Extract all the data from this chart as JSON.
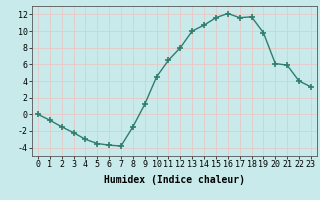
{
  "x": [
    0,
    1,
    2,
    3,
    4,
    5,
    6,
    7,
    8,
    9,
    10,
    11,
    12,
    13,
    14,
    15,
    16,
    17,
    18,
    19,
    20,
    21,
    22,
    23
  ],
  "y": [
    0,
    -0.7,
    -1.5,
    -2.2,
    -3.0,
    -3.5,
    -3.7,
    -3.8,
    -1.5,
    1.2,
    4.5,
    6.5,
    8.0,
    10.0,
    10.7,
    11.6,
    12.1,
    11.6,
    11.7,
    9.8,
    6.1,
    5.9,
    4.0,
    3.3
  ],
  "line_color": "#2e7d6e",
  "marker": "+",
  "marker_size": 5,
  "marker_lw": 1.2,
  "bg_color": "#c8eaea",
  "grid_color_h": "#e8c8c8",
  "grid_color_v": "#e8c8c8",
  "xlabel": "Humidex (Indice chaleur)",
  "xlim": [
    -0.5,
    23.5
  ],
  "ylim": [
    -5,
    13
  ],
  "yticks": [
    -4,
    -2,
    0,
    2,
    4,
    6,
    8,
    10,
    12
  ],
  "xticks": [
    0,
    1,
    2,
    3,
    4,
    5,
    6,
    7,
    8,
    9,
    10,
    11,
    12,
    13,
    14,
    15,
    16,
    17,
    18,
    19,
    20,
    21,
    22,
    23
  ],
  "xlabel_fontsize": 7,
  "tick_fontsize": 6,
  "spine_color": "#555555"
}
